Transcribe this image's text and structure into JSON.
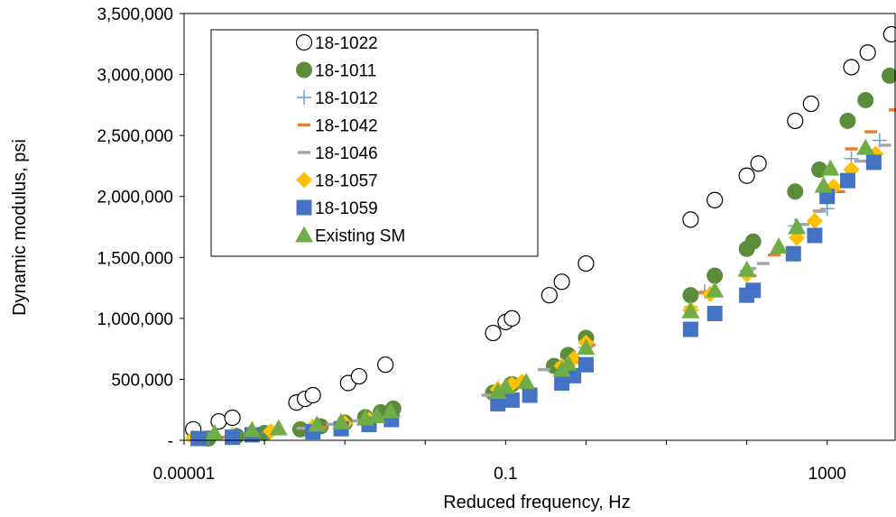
{
  "chart_data": {
    "type": "scatter",
    "xlabel": "Reduced frequency, Hz",
    "ylabel": "Dynamic modulus, psi",
    "x_scale": "log",
    "xlim": [
      1e-05,
      7000
    ],
    "ylim": [
      0,
      3500000
    ],
    "x_ticks": [
      1e-05,
      0.1,
      1000
    ],
    "x_tick_labels": [
      "0.00001",
      "0.1",
      "1000"
    ],
    "y_ticks": [
      0,
      500000,
      1000000,
      1500000,
      2000000,
      2500000,
      3000000,
      3500000
    ],
    "y_tick_labels": [
      "-",
      "500,000",
      "1,000,000",
      "1,500,000",
      "2,000,000",
      "2,500,000",
      "3,000,000",
      "3,500,000"
    ],
    "legend_position": "top-left inside",
    "series": [
      {
        "name": "18-1022",
        "marker": "open-circle",
        "color": "#000000",
        "points": [
          [
            1.3e-05,
            90000
          ],
          [
            2.7e-05,
            155000
          ],
          [
            4e-05,
            185000
          ],
          [
            0.00025,
            310000
          ],
          [
            0.00032,
            340000
          ],
          [
            0.0004,
            370000
          ],
          [
            0.0011,
            470000
          ],
          [
            0.0015,
            525000
          ],
          [
            0.0032,
            620000
          ],
          [
            0.07,
            880000
          ],
          [
            0.1,
            970000
          ],
          [
            0.12,
            1000000
          ],
          [
            0.35,
            1190000
          ],
          [
            0.5,
            1300000
          ],
          [
            1.0,
            1450000
          ],
          [
            20,
            1810000
          ],
          [
            40,
            1970000
          ],
          [
            100,
            2170000
          ],
          [
            140,
            2270000
          ],
          [
            400,
            2620000
          ],
          [
            630,
            2760000
          ],
          [
            2000,
            3060000
          ],
          [
            3200,
            3180000
          ],
          [
            6300,
            3330000
          ]
        ]
      },
      {
        "name": "18-1011",
        "marker": "filled-circle",
        "color": "#5b8c3a",
        "points": [
          [
            2e-05,
            15000
          ],
          [
            4.5e-05,
            35000
          ],
          [
            0.0001,
            60000
          ],
          [
            0.00028,
            90000
          ],
          [
            0.0005,
            115000
          ],
          [
            0.001,
            145000
          ],
          [
            0.0018,
            190000
          ],
          [
            0.0028,
            230000
          ],
          [
            0.004,
            260000
          ],
          [
            0.07,
            390000
          ],
          [
            0.12,
            460000
          ],
          [
            0.4,
            610000
          ],
          [
            0.6,
            700000
          ],
          [
            1.0,
            840000
          ],
          [
            20,
            1190000
          ],
          [
            40,
            1350000
          ],
          [
            100,
            1570000
          ],
          [
            120,
            1630000
          ],
          [
            400,
            2040000
          ],
          [
            800,
            2220000
          ],
          [
            1800,
            2620000
          ],
          [
            3000,
            2790000
          ],
          [
            6000,
            2990000
          ]
        ]
      },
      {
        "name": "18-1012",
        "marker": "plus",
        "color": "#5b9bd5",
        "points": [
          [
            2e-05,
            20000
          ],
          [
            0.00011,
            60000
          ],
          [
            0.00045,
            100000
          ],
          [
            0.0018,
            165000
          ],
          [
            0.004,
            200000
          ],
          [
            0.12,
            440000
          ],
          [
            0.6,
            620000
          ],
          [
            1.0,
            760000
          ],
          [
            30,
            1220000
          ],
          [
            100,
            1390000
          ],
          [
            400,
            1760000
          ],
          [
            1000,
            1900000
          ],
          [
            2000,
            2310000
          ],
          [
            4500,
            2460000
          ]
        ]
      },
      {
        "name": "18-1042",
        "marker": "dash",
        "color": "#ed7d31",
        "points": [
          [
            3e-05,
            25000
          ],
          [
            0.00012,
            65000
          ],
          [
            0.0005,
            105000
          ],
          [
            0.002,
            175000
          ],
          [
            0.004,
            210000
          ],
          [
            0.13,
            440000
          ],
          [
            0.7,
            640000
          ],
          [
            1.1,
            780000
          ],
          [
            30,
            1210000
          ],
          [
            110,
            1350000
          ],
          [
            220,
            1520000
          ],
          [
            800,
            1880000
          ],
          [
            1400,
            2040000
          ],
          [
            2000,
            2390000
          ],
          [
            3500,
            2530000
          ],
          [
            7000,
            2710000
          ]
        ]
      },
      {
        "name": "18-1046",
        "marker": "dash",
        "color": "#a5a5a5",
        "points": [
          [
            0.0003,
            100000
          ],
          [
            0.0007,
            130000
          ],
          [
            0.0015,
            160000
          ],
          [
            0.06,
            370000
          ],
          [
            0.3,
            580000
          ],
          [
            0.5,
            630000
          ],
          [
            20,
            1090000
          ],
          [
            110,
            1410000
          ],
          [
            160,
            1450000
          ],
          [
            500,
            1770000
          ],
          [
            800,
            1880000
          ],
          [
            2600,
            2290000
          ],
          [
            5200,
            2420000
          ]
        ]
      },
      {
        "name": "18-1057",
        "marker": "diamond",
        "color": "#ffc000",
        "points": [
          [
            1.3e-05,
            20000
          ],
          [
            4e-05,
            45000
          ],
          [
            0.00012,
            75000
          ],
          [
            0.0004,
            110000
          ],
          [
            0.001,
            140000
          ],
          [
            0.002,
            170000
          ],
          [
            0.08,
            420000
          ],
          [
            0.12,
            460000
          ],
          [
            0.16,
            480000
          ],
          [
            0.5,
            610000
          ],
          [
            0.7,
            670000
          ],
          [
            1.0,
            800000
          ],
          [
            20,
            1070000
          ],
          [
            35,
            1200000
          ],
          [
            100,
            1360000
          ],
          [
            420,
            1660000
          ],
          [
            700,
            1800000
          ],
          [
            1200,
            2080000
          ],
          [
            2000,
            2220000
          ],
          [
            4000,
            2350000
          ]
        ]
      },
      {
        "name": "18-1059",
        "marker": "filled-square",
        "color": "#4472c4",
        "points": [
          [
            1.5e-05,
            15000
          ],
          [
            4e-05,
            25000
          ],
          [
            7e-05,
            45000
          ],
          [
            0.0004,
            70000
          ],
          [
            0.0009,
            95000
          ],
          [
            0.002,
            130000
          ],
          [
            0.0038,
            170000
          ],
          [
            0.08,
            300000
          ],
          [
            0.12,
            330000
          ],
          [
            0.2,
            370000
          ],
          [
            0.5,
            470000
          ],
          [
            0.7,
            530000
          ],
          [
            1.0,
            620000
          ],
          [
            20,
            910000
          ],
          [
            40,
            1040000
          ],
          [
            100,
            1190000
          ],
          [
            120,
            1230000
          ],
          [
            380,
            1530000
          ],
          [
            700,
            1680000
          ],
          [
            1000,
            2000000
          ],
          [
            1800,
            2130000
          ],
          [
            3800,
            2280000
          ]
        ]
      },
      {
        "name": "Existing SM",
        "marker": "filled-triangle",
        "color": "#70ad47",
        "points": [
          [
            2.4e-05,
            60000
          ],
          [
            7e-05,
            85000
          ],
          [
            0.00015,
            100000
          ],
          [
            0.00045,
            130000
          ],
          [
            0.0009,
            150000
          ],
          [
            0.0018,
            180000
          ],
          [
            0.0025,
            200000
          ],
          [
            0.0037,
            240000
          ],
          [
            0.08,
            400000
          ],
          [
            0.1,
            440000
          ],
          [
            0.18,
            480000
          ],
          [
            0.5,
            580000
          ],
          [
            0.6,
            630000
          ],
          [
            1.0,
            760000
          ],
          [
            20,
            1060000
          ],
          [
            40,
            1230000
          ],
          [
            100,
            1400000
          ],
          [
            250,
            1590000
          ],
          [
            420,
            1750000
          ],
          [
            900,
            2090000
          ],
          [
            1100,
            2230000
          ],
          [
            3000,
            2400000
          ]
        ]
      }
    ]
  }
}
